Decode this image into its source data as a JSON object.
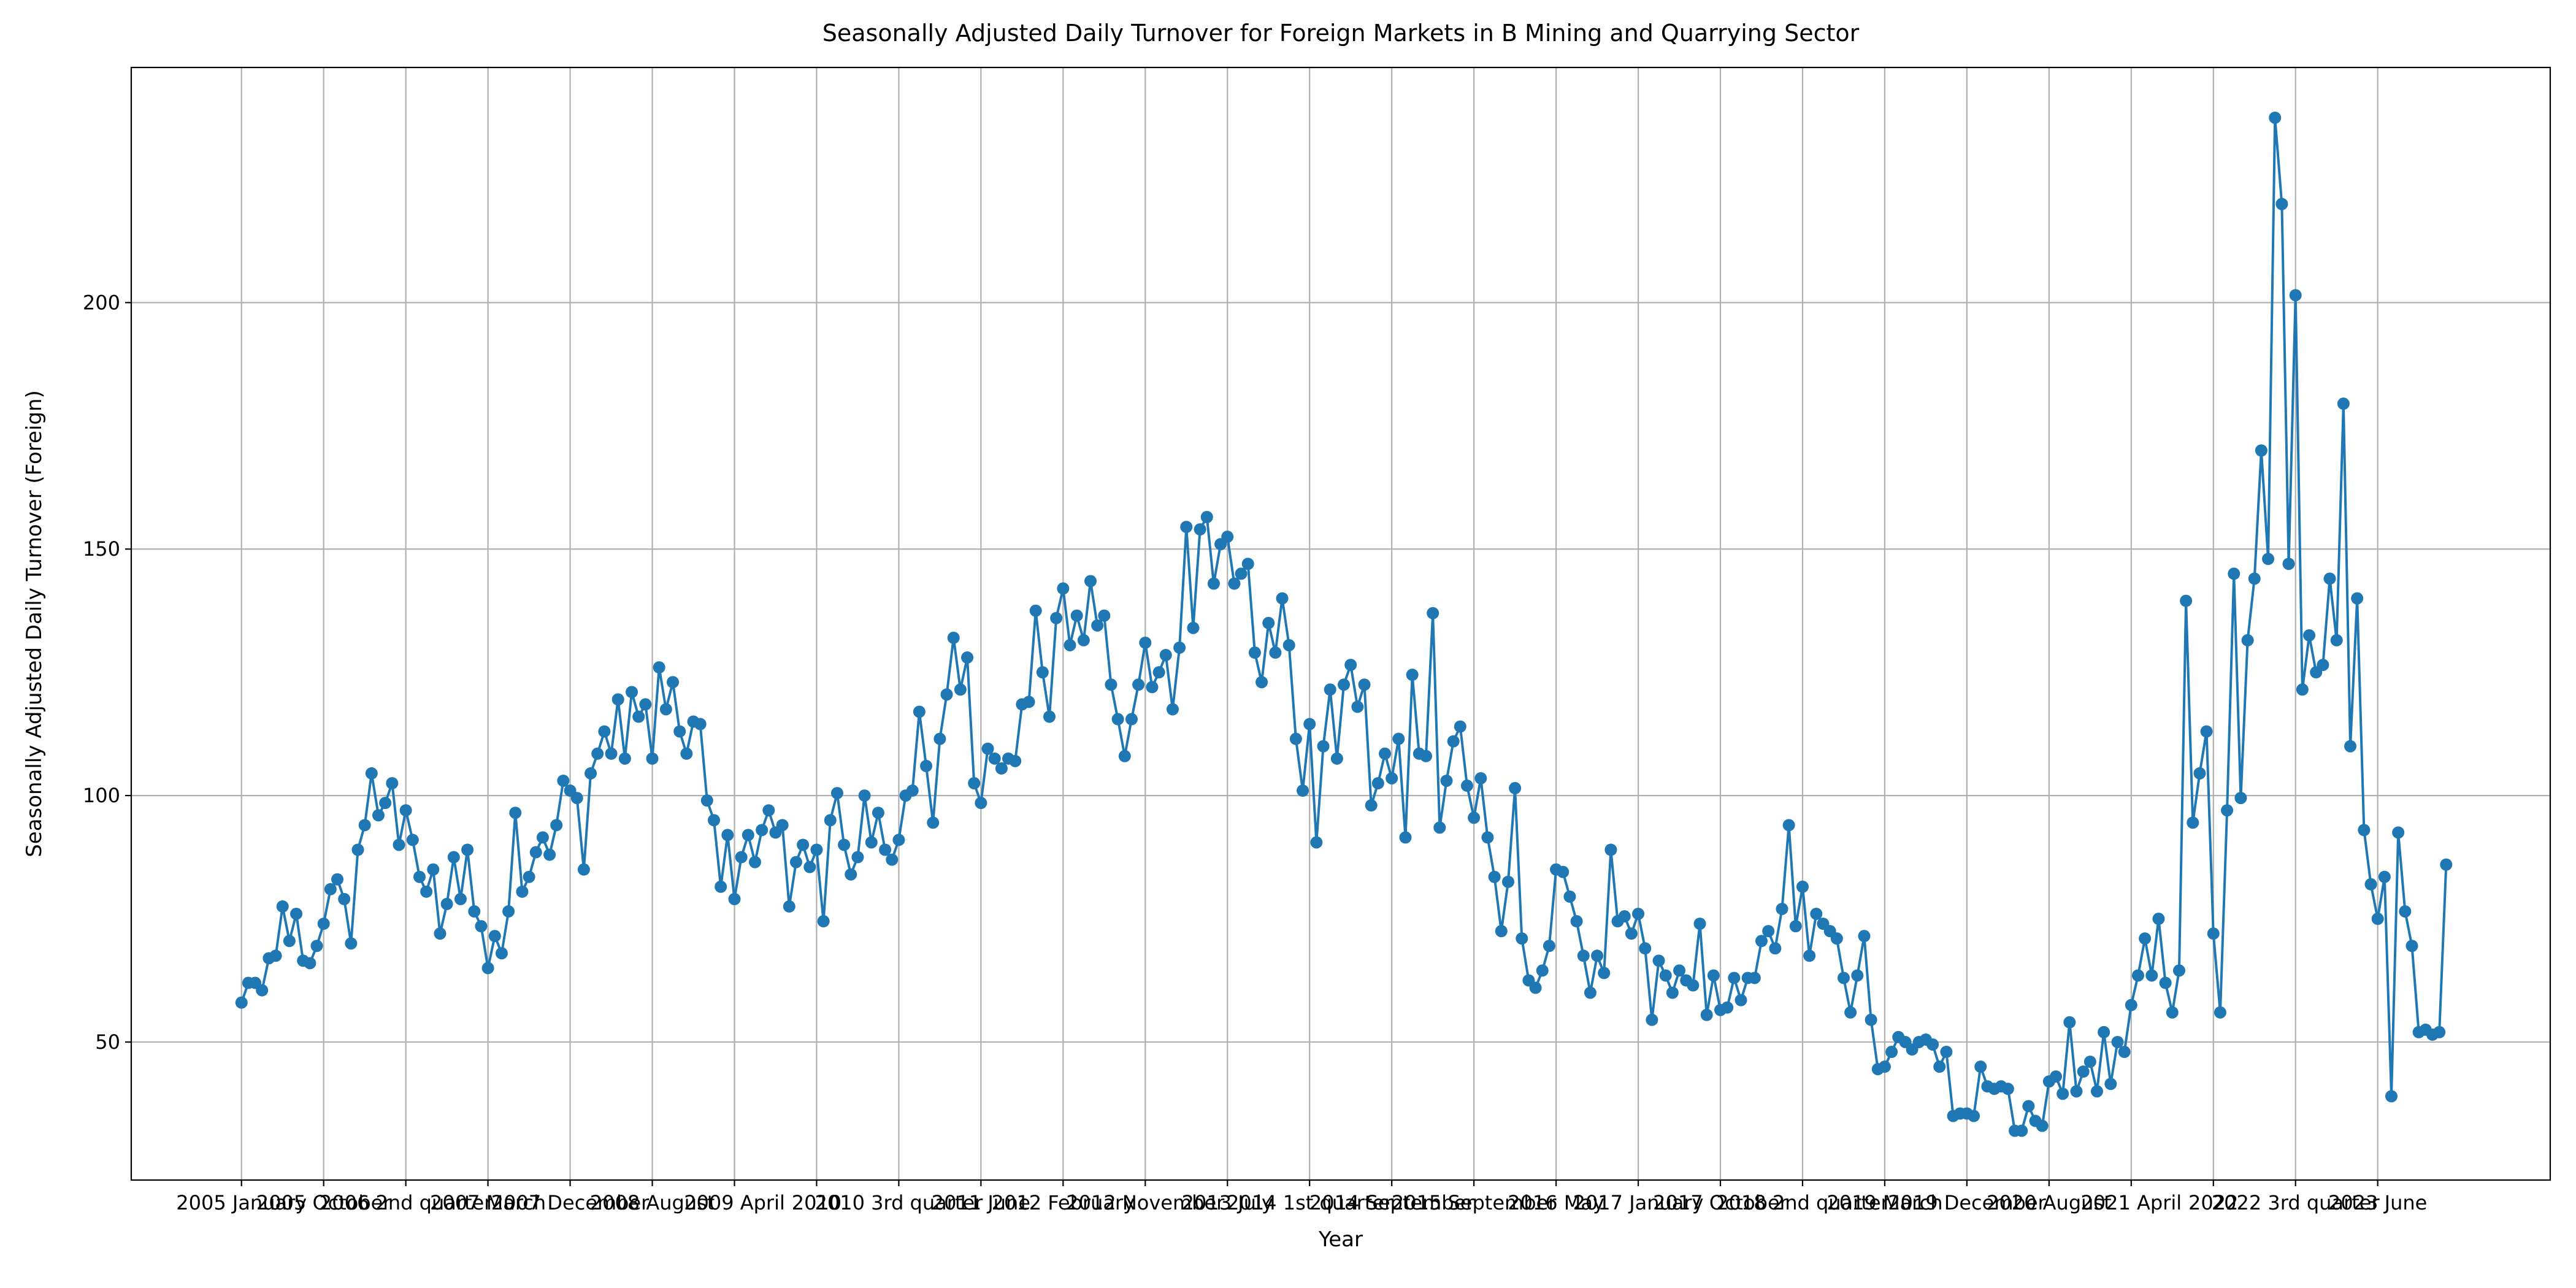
{
  "chart_data": {
    "type": "line",
    "title": "Seasonally Adjusted Daily Turnover for Foreign Markets in B Mining and Quarrying Sector",
    "x_label": "Year",
    "y_label": "Seasonally Adjusted Daily Turnover (Foreign)",
    "color": "#1f77b4",
    "grid": true,
    "ylim": [
      22,
      247.7
    ],
    "yticks": [
      50,
      100,
      150,
      200
    ],
    "categories": [
      "2005 January",
      null,
      null,
      null,
      null,
      null,
      null,
      null,
      null,
      null,
      null,
      null,
      "2005 October",
      null,
      null,
      null,
      null,
      null,
      null,
      null,
      null,
      null,
      null,
      null,
      "2006 2nd quarter",
      null,
      null,
      null,
      null,
      null,
      null,
      null,
      null,
      null,
      null,
      null,
      "2007 March",
      null,
      null,
      null,
      null,
      null,
      null,
      null,
      null,
      null,
      null,
      null,
      "2007 December",
      null,
      null,
      null,
      null,
      null,
      null,
      null,
      null,
      null,
      null,
      null,
      "2008 August",
      null,
      null,
      null,
      null,
      null,
      null,
      null,
      null,
      null,
      null,
      null,
      "2009 April",
      null,
      null,
      null,
      null,
      null,
      null,
      null,
      null,
      null,
      null,
      null,
      "2010",
      null,
      null,
      null,
      null,
      null,
      null,
      null,
      null,
      null,
      null,
      null,
      "2010 3rd quarter",
      null,
      null,
      null,
      null,
      null,
      null,
      null,
      null,
      null,
      null,
      null,
      "2011 June",
      null,
      null,
      null,
      null,
      null,
      null,
      null,
      null,
      null,
      null,
      null,
      "2012 February",
      null,
      null,
      null,
      null,
      null,
      null,
      null,
      null,
      null,
      null,
      null,
      "2012 November",
      null,
      null,
      null,
      null,
      null,
      null,
      null,
      null,
      null,
      null,
      null,
      "2013 July",
      null,
      null,
      null,
      null,
      null,
      null,
      null,
      null,
      null,
      null,
      null,
      "2014 1st quarter",
      null,
      null,
      null,
      null,
      null,
      null,
      null,
      null,
      null,
      null,
      null,
      "2014 September",
      null,
      null,
      null,
      null,
      null,
      null,
      null,
      null,
      null,
      null,
      null,
      "2015 September",
      null,
      null,
      null,
      null,
      null,
      null,
      null,
      null,
      null,
      null,
      null,
      "2016 May",
      null,
      null,
      null,
      null,
      null,
      null,
      null,
      null,
      null,
      null,
      null,
      "2017 January",
      null,
      null,
      null,
      null,
      null,
      null,
      null,
      null,
      null,
      null,
      null,
      "2017 October",
      null,
      null,
      null,
      null,
      null,
      null,
      null,
      null,
      null,
      null,
      null,
      "2018 2nd quarter",
      null,
      null,
      null,
      null,
      null,
      null,
      null,
      null,
      null,
      null,
      null,
      "2019 March",
      null,
      null,
      null,
      null,
      null,
      null,
      null,
      null,
      null,
      null,
      null,
      "2019 December",
      null,
      null,
      null,
      null,
      null,
      null,
      null,
      null,
      null,
      null,
      null,
      "2020 August",
      null,
      null,
      null,
      null,
      null,
      null,
      null,
      null,
      null,
      null,
      null,
      "2021 April",
      null,
      null,
      null,
      null,
      null,
      null,
      null,
      null,
      null,
      null,
      null,
      "2022",
      null,
      null,
      null,
      null,
      null,
      null,
      null,
      null,
      null,
      null,
      null,
      "2022 3rd quarter",
      null,
      null,
      null,
      null,
      null,
      null,
      null,
      null,
      null,
      null,
      null,
      "2023 June",
      null,
      null,
      null,
      null,
      null,
      null,
      null,
      null,
      null,
      null
    ],
    "values": [
      58,
      62,
      62,
      60.5,
      67,
      67.5,
      77.5,
      70.5,
      76,
      66.5,
      66,
      69.5,
      74,
      81,
      83,
      79,
      70,
      89,
      94,
      104.5,
      96,
      98.5,
      102.5,
      90,
      97,
      91,
      83.5,
      80.5,
      85,
      72,
      78,
      87.5,
      79,
      89,
      76.5,
      73.5,
      65,
      71.5,
      68,
      76.5,
      96.5,
      80.5,
      83.5,
      88.5,
      91.5,
      88,
      94,
      103,
      101,
      99.5,
      85,
      104.5,
      108.5,
      113,
      108.5,
      119.5,
      107.5,
      121,
      116,
      118.5,
      107.5,
      126,
      117.5,
      123,
      113,
      108.5,
      115,
      114.5,
      99,
      95,
      81.5,
      92,
      79,
      87.5,
      92,
      86.5,
      93,
      97,
      92.5,
      94,
      77.5,
      86.5,
      90,
      85.5,
      89,
      74.5,
      95,
      100.5,
      90,
      84,
      87.5,
      100,
      90.5,
      96.5,
      89,
      87,
      91,
      100,
      101,
      117,
      106,
      94.5,
      111.5,
      120.5,
      132,
      121.5,
      128,
      102.5,
      98.5,
      109.5,
      107.5,
      105.5,
      107.5,
      107,
      118.5,
      119,
      137.5,
      125,
      116,
      136,
      142,
      130.5,
      136.5,
      131.5,
      143.5,
      134.5,
      136.5,
      122.5,
      115.5,
      108,
      115.5,
      122.5,
      131,
      122,
      125,
      128.5,
      117.5,
      130,
      154.5,
      134,
      154,
      156.5,
      143,
      151,
      152.5,
      143,
      145,
      147,
      129,
      123,
      135,
      129,
      140,
      130.5,
      111.5,
      101,
      114.5,
      90.5,
      110,
      121.5,
      107.5,
      122.5,
      126.5,
      118,
      122.5,
      98,
      102.5,
      108.5,
      103.5,
      111.5,
      91.5,
      124.5,
      108.5,
      108,
      137,
      93.5,
      103,
      111,
      114,
      102,
      95.5,
      103.5,
      91.5,
      83.5,
      72.5,
      82.5,
      101.5,
      71,
      62.5,
      61,
      64.5,
      69.5,
      85,
      84.5,
      79.5,
      74.5,
      67.5,
      60,
      67.5,
      64,
      89,
      74.5,
      75.5,
      72,
      76,
      69,
      54.5,
      66.5,
      63.5,
      60,
      64.5,
      62.5,
      61.5,
      74,
      55.5,
      63.5,
      56.5,
      57,
      63,
      58.5,
      63,
      63,
      70.5,
      72.5,
      69,
      77,
      94,
      73.5,
      81.5,
      67.5,
      76,
      74,
      72.5,
      71,
      63,
      56,
      63.5,
      71.5,
      54.5,
      44.5,
      45,
      48,
      51,
      50,
      48.5,
      50,
      50.5,
      49.5,
      45,
      48,
      35,
      35.5,
      35.5,
      35,
      45,
      41,
      40.5,
      41,
      40.5,
      32,
      32,
      37,
      34,
      33,
      42,
      43,
      39.5,
      54,
      40,
      44,
      46,
      40,
      52,
      41.5,
      50,
      48,
      57.5,
      63.5,
      71,
      63.5,
      75,
      62,
      56,
      64.5,
      139.5,
      94.5,
      104.5,
      113,
      72,
      56,
      97,
      145,
      99.5,
      131.5,
      144,
      170,
      148,
      237.5,
      220,
      147,
      201.5,
      121.5,
      132.5,
      125,
      126.5,
      144,
      131.5,
      179.5,
      110,
      140,
      93,
      82,
      75,
      83.5,
      39,
      92.5,
      76.5,
      69.5,
      52,
      52.5,
      51.5,
      52,
      86
    ]
  }
}
